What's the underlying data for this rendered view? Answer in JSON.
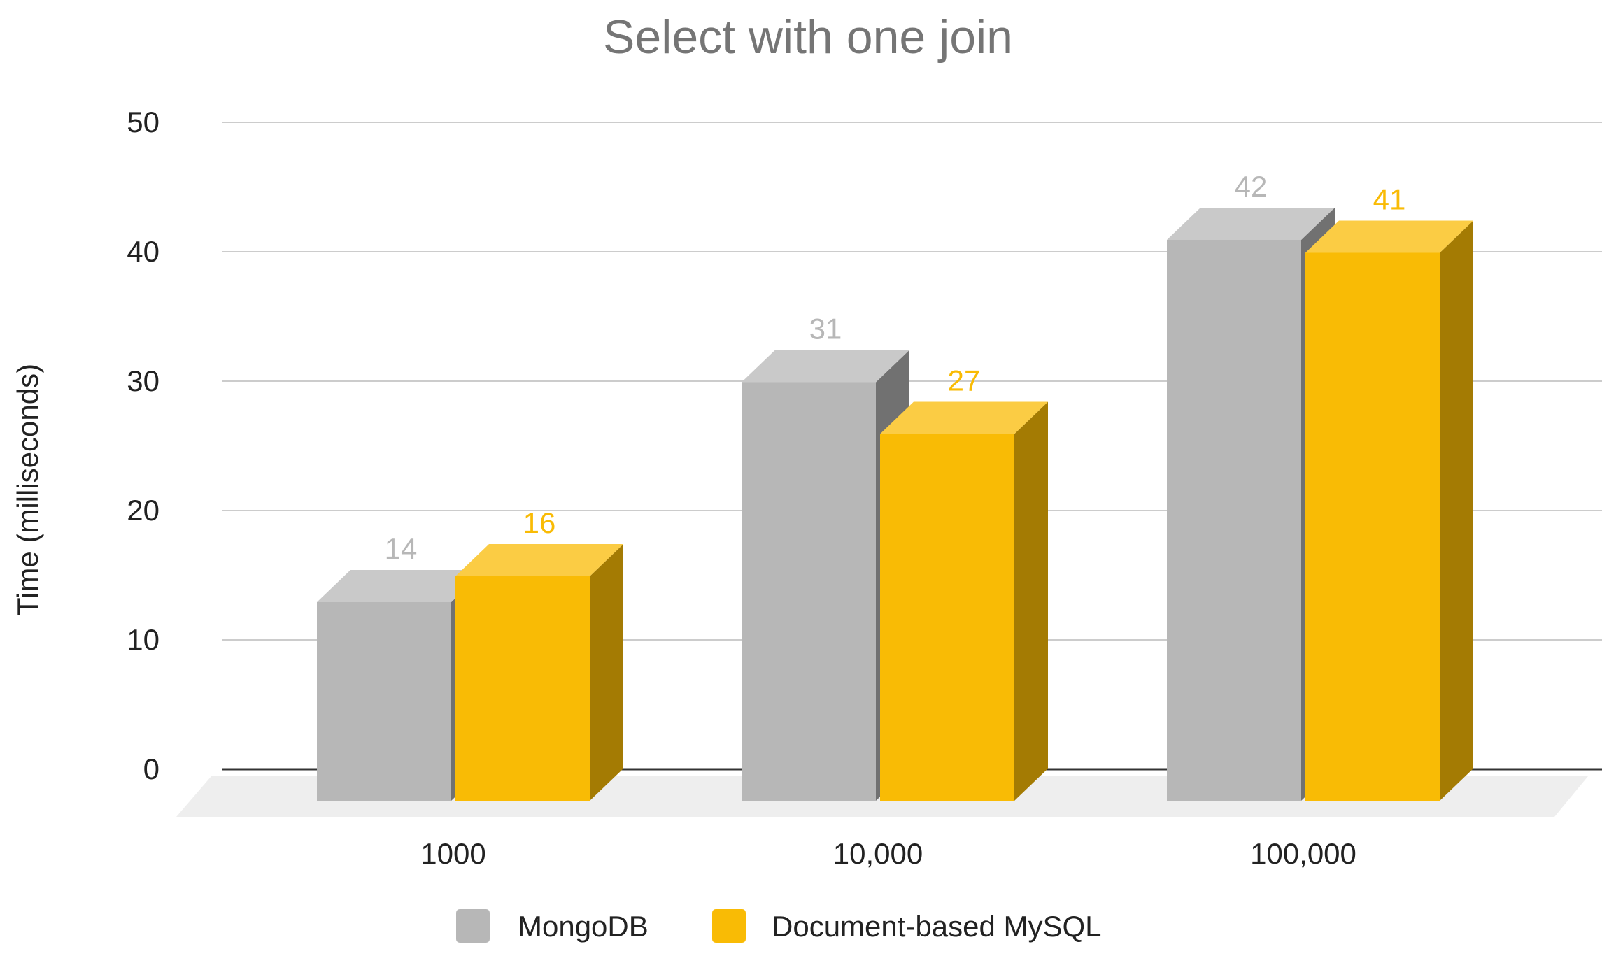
{
  "chart_data": {
    "type": "bar",
    "title": "Select with one join",
    "xlabel": "",
    "ylabel": "Time (milliseconds)",
    "categories": [
      "1000",
      "10,000",
      "100,000"
    ],
    "series": [
      {
        "name": "MongoDB",
        "values": [
          14,
          31,
          42
        ],
        "color": "#b7b7b7",
        "label_color": "#b7b7b7"
      },
      {
        "name": "Document-based MySQL",
        "values": [
          16,
          27,
          41
        ],
        "color": "#f9bb05",
        "label_color": "#f9bb05"
      }
    ],
    "ylim": [
      0,
      50
    ],
    "yticks": [
      "0",
      "10",
      "20",
      "30",
      "40",
      "50"
    ],
    "grid": true,
    "legend_position": "bottom",
    "style": "3d"
  }
}
